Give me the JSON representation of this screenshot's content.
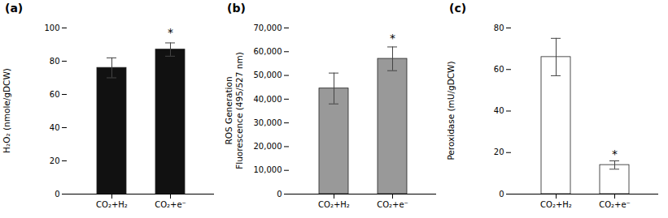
{
  "chart_data": [
    {
      "type": "bar",
      "title": "(a)",
      "categories": [
        "CO₂+H₂",
        "CO₂+e⁻"
      ],
      "values": [
        76,
        87
      ],
      "errors": [
        6,
        4
      ],
      "color": "#111111",
      "ylabel": "H₂O₂ (nmole/gDCW)",
      "ylim": [
        0,
        100
      ],
      "yticks": [
        0,
        20,
        40,
        60,
        80,
        100
      ],
      "grid": false,
      "annotations": [
        {
          "text": "*",
          "x": "CO₂+e⁻",
          "y": 95
        }
      ]
    },
    {
      "type": "bar",
      "title": "(b)",
      "categories": [
        "CO₂+H₂",
        "CO₂+e⁻"
      ],
      "values": [
        44500,
        57000
      ],
      "errors": [
        6500,
        5000
      ],
      "color": "#999999",
      "ylabel": "ROS Generation\nFluorescence (495/527 nm)",
      "ylim": [
        0,
        70000
      ],
      "yticks": [
        0,
        {
          "value": 10000,
          "label": "10,000"
        },
        {
          "value": 20000,
          "label": "20,000"
        },
        {
          "value": 30000,
          "label": "30,000"
        },
        {
          "value": 40000,
          "label": "40,000"
        },
        {
          "value": 50000,
          "label": "50,000"
        },
        {
          "value": 60000,
          "label": "60,000"
        },
        {
          "value": 70000,
          "label": "70,000"
        }
      ],
      "grid": false,
      "annotations": [
        {
          "text": "*",
          "x": "CO₂+e⁻",
          "y": 64000
        }
      ]
    },
    {
      "type": "bar",
      "title": "(c)",
      "categories": [
        "CO₂+H₂",
        "CO₂+e⁻"
      ],
      "values": [
        66,
        14
      ],
      "errors": [
        9,
        2
      ],
      "color": "#ffffff",
      "ylabel": "Peroxidase (mU/gDCW)",
      "ylim": [
        0,
        80
      ],
      "yticks": [
        0,
        20,
        40,
        60,
        80
      ],
      "grid": false,
      "annotations": [
        {
          "text": "*",
          "x": "CO₂+e⁻",
          "y": 17.5
        }
      ]
    }
  ]
}
